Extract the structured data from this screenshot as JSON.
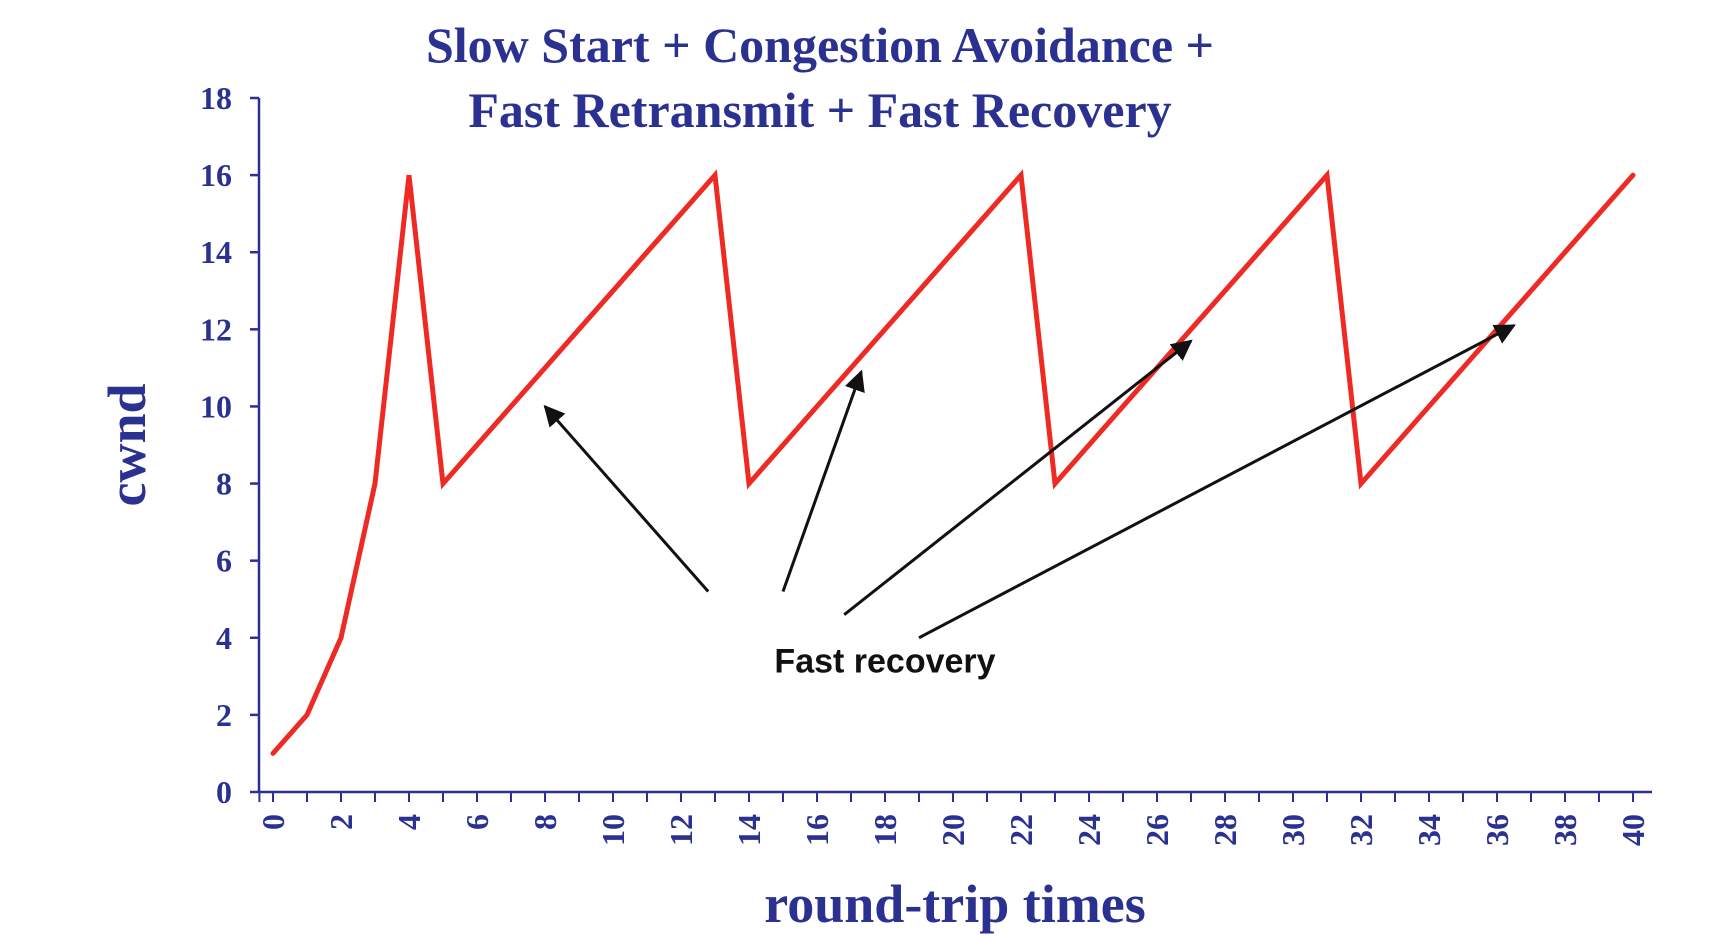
{
  "chart_data": {
    "type": "line",
    "title_lines": [
      "Slow Start + Congestion Avoidance +",
      "Fast Retransmit + Fast Recovery"
    ],
    "xlabel": "round-trip times",
    "ylabel": "cwnd",
    "xlim": [
      -1,
      41
    ],
    "ylim": [
      0,
      18
    ],
    "x_ticks": [
      0,
      2,
      4,
      6,
      8,
      10,
      12,
      14,
      16,
      18,
      20,
      22,
      24,
      26,
      28,
      30,
      32,
      34,
      36,
      38,
      40
    ],
    "y_ticks": [
      0,
      2,
      4,
      6,
      8,
      10,
      12,
      14,
      16,
      18
    ],
    "grid": false,
    "series": [
      {
        "color": "#ee2a24",
        "x": [
          0,
          1,
          2,
          3,
          4,
          5,
          6,
          7,
          8,
          9,
          10,
          11,
          12,
          13,
          14,
          15,
          16,
          17,
          18,
          19,
          20,
          21,
          22,
          23,
          24,
          25,
          26,
          27,
          28,
          29,
          30,
          31,
          32,
          33,
          34,
          35,
          36,
          37,
          38,
          39,
          40
        ],
        "y": [
          1,
          2,
          4,
          8,
          16,
          8,
          9,
          10,
          11,
          12,
          13,
          14,
          15,
          16,
          8,
          9,
          10,
          11,
          12,
          13,
          14,
          15,
          16,
          8,
          9,
          10,
          11,
          12,
          13,
          14,
          15,
          16,
          8,
          9,
          10,
          11,
          12,
          13,
          14,
          15,
          16
        ]
      }
    ],
    "annotations": [
      {
        "text": "Fast recovery",
        "label_at": [
          18,
          3.1
        ],
        "arrows": [
          {
            "from": [
              12.8,
              5.2
            ],
            "to": [
              8,
              10
            ]
          },
          {
            "from": [
              15,
              5.2
            ],
            "to": [
              17.3,
              10.9
            ]
          },
          {
            "from": [
              16.8,
              4.6
            ],
            "to": [
              27,
              11.7
            ]
          },
          {
            "from": [
              19,
              4.0
            ],
            "to": [
              36.5,
              12.1
            ]
          }
        ]
      }
    ]
  }
}
